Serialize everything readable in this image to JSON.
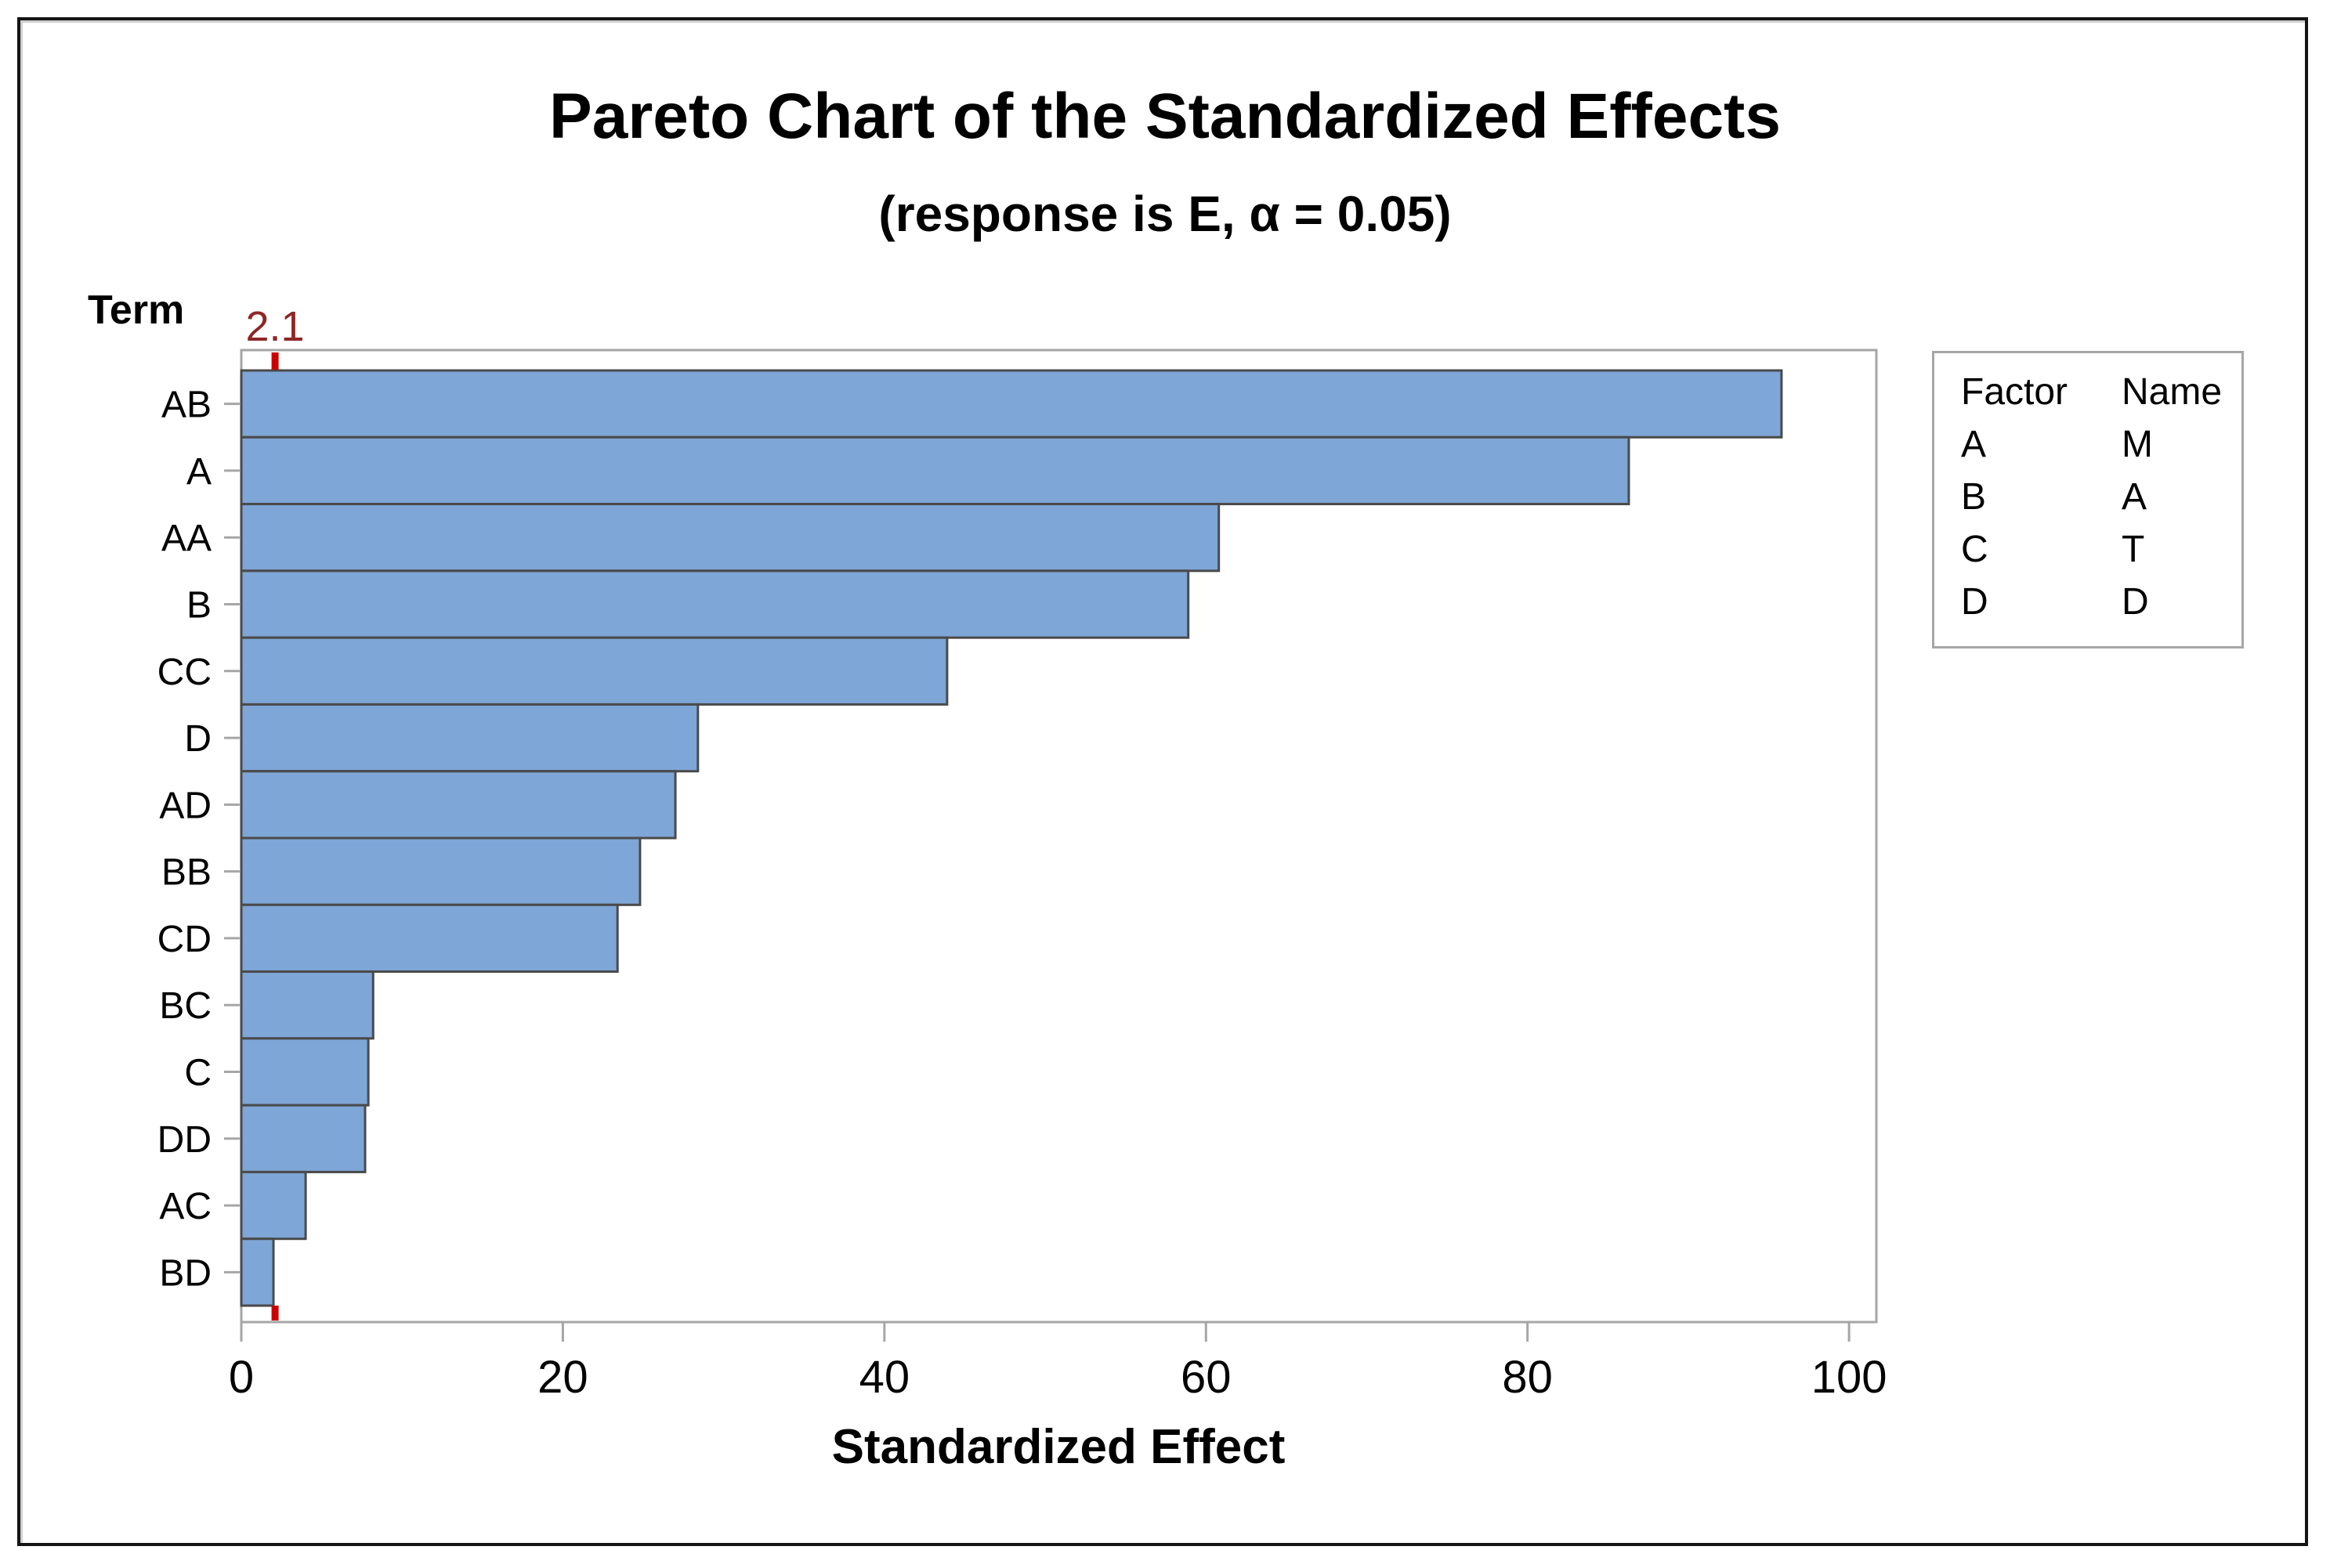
{
  "chart_data": {
    "type": "bar",
    "orientation": "horizontal",
    "title": "Pareto Chart of the Standardized Effects",
    "subtitle": "(response is E, α = 0.05)",
    "xlabel": "Standardized Effect",
    "ylabel": "Term",
    "response": "E",
    "alpha": 0.05,
    "categories": [
      "AB",
      "A",
      "AA",
      "B",
      "CC",
      "D",
      "AD",
      "BB",
      "CD",
      "BC",
      "C",
      "DD",
      "AC",
      "BD"
    ],
    "values": [
      95.8,
      86.3,
      60.8,
      58.9,
      43.9,
      28.4,
      27.0,
      24.8,
      23.4,
      8.2,
      7.9,
      7.7,
      4.0,
      2.0
    ],
    "x_ticks": [
      0,
      20,
      40,
      60,
      80,
      100
    ],
    "xlim": [
      0,
      101.7
    ],
    "reference_line": 2.1,
    "grid": false,
    "legend_position": "right"
  },
  "legend": {
    "headers": [
      "Factor",
      "Name"
    ],
    "rows": [
      [
        "A",
        "M"
      ],
      [
        "B",
        "A"
      ],
      [
        "C",
        "T"
      ],
      [
        "D",
        "D"
      ]
    ]
  },
  "colors": {
    "bar_fill": "#7EA6D6",
    "bar_border": "#4A4A4A",
    "axis": "#A6A6A6",
    "reference_tick": "#CC0000",
    "reference_label": "#8E2626",
    "text": "#000000"
  }
}
